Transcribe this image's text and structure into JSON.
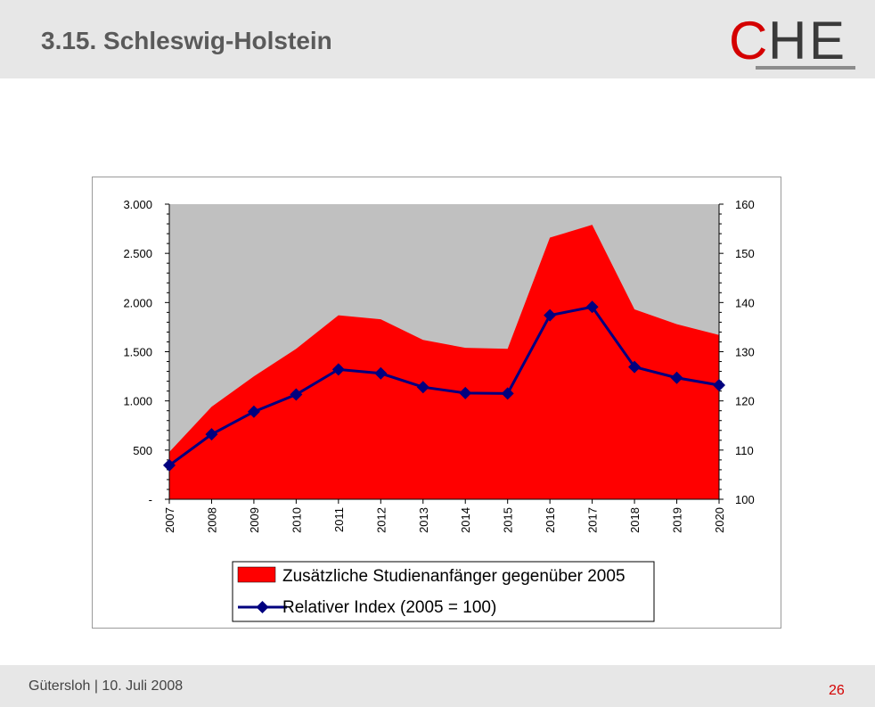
{
  "slide": {
    "title": "3.15. Schleswig-Holstein",
    "footer": "Gütersloh | 10. Juli 2008",
    "page_number": "26",
    "logo_text": "CHE"
  },
  "colors": {
    "area_fill": "#ff0000",
    "line": "#00007f",
    "plot_bg": "#c0c0c0",
    "title": "#5a5a5a",
    "page_number": "#d40000"
  },
  "chart_data": {
    "type": "area",
    "categories": [
      "2007",
      "2008",
      "2009",
      "2010",
      "2011",
      "2012",
      "2013",
      "2014",
      "2015",
      "2016",
      "2017",
      "2018",
      "2019",
      "2020"
    ],
    "series": [
      {
        "name": "Zusätzliche Studienanfänger gegenüber 2005",
        "type": "area",
        "axis": "left",
        "values": [
          480,
          940,
          1250,
          1530,
          1870,
          1830,
          1620,
          1540,
          1530,
          2660,
          2790,
          1930,
          1780,
          1670
        ]
      },
      {
        "name": "Relativer Index (2005 = 100)",
        "type": "line",
        "axis": "right",
        "values": [
          106.9,
          113.2,
          117.8,
          121.3,
          126.4,
          125.6,
          122.8,
          121.6,
          121.5,
          137.4,
          139.1,
          126.9,
          124.7,
          123.2
        ]
      }
    ],
    "y_left": {
      "ylim": [
        0,
        3000
      ],
      "ticks": [
        "-",
        "500",
        "1.000",
        "1.500",
        "2.000",
        "2.500",
        "3.000"
      ]
    },
    "y_right": {
      "ylim": [
        100,
        160
      ],
      "ticks": [
        "100",
        "110",
        "120",
        "130",
        "140",
        "150",
        "160"
      ]
    },
    "legend": "bottom",
    "grid": false
  }
}
